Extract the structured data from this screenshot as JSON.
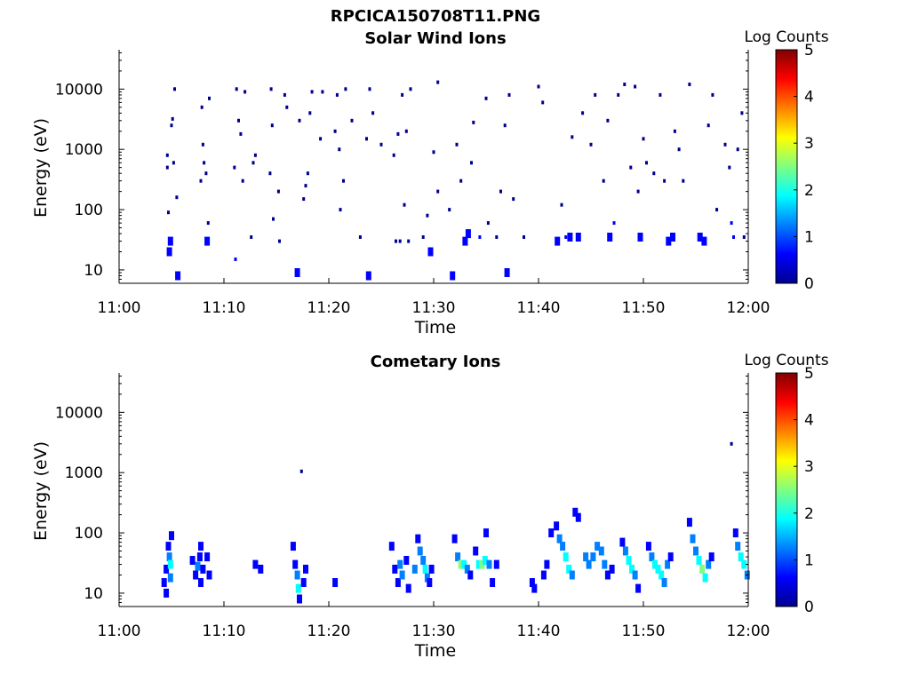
{
  "figure": {
    "title": "RPCICA150708T11.PNG"
  },
  "colors": {
    "colormap": [
      "#00008f",
      "#0000ff",
      "#0080ff",
      "#00ffff",
      "#80ff80",
      "#ffff00",
      "#ff8000",
      "#ff0000",
      "#800000"
    ]
  },
  "chart_data": [
    {
      "type": "heatmap",
      "title": "Solar Wind Ions",
      "xlabel": "Time",
      "ylabel": "Energy (eV)",
      "colorbar_label": "Log Counts",
      "y_scale": "log",
      "x_range": [
        "11:00",
        "12:00"
      ],
      "y_range": [
        6,
        45000
      ],
      "x_ticks": [
        "11:00",
        "11:10",
        "11:20",
        "11:30",
        "11:40",
        "11:50",
        "12:00"
      ],
      "y_ticks": [
        "10",
        "100",
        "1000",
        "10000"
      ],
      "colorbar_range": [
        0,
        5
      ],
      "colorbar_ticks": [
        "0",
        "1",
        "2",
        "3",
        "4",
        "5"
      ],
      "points": [
        [
          4.6,
          800,
          0.2
        ],
        [
          4.6,
          500,
          0.2
        ],
        [
          4.7,
          90,
          0.3
        ],
        [
          4.8,
          20,
          0.5
        ],
        [
          4.9,
          30,
          0.5
        ],
        [
          5.0,
          2500,
          0.2
        ],
        [
          5.1,
          3200,
          0.2
        ],
        [
          5.2,
          600,
          0.2
        ],
        [
          5.3,
          10000,
          0.2
        ],
        [
          5.5,
          160,
          0.2
        ],
        [
          5.6,
          8,
          0.6
        ],
        [
          7.8,
          300,
          0.2
        ],
        [
          7.9,
          5000,
          0.2
        ],
        [
          8.0,
          1200,
          0.2
        ],
        [
          8.1,
          600,
          0.2
        ],
        [
          8.3,
          400,
          0.2
        ],
        [
          8.4,
          30,
          0.5
        ],
        [
          8.5,
          60,
          0.2
        ],
        [
          8.6,
          7000,
          0.2
        ],
        [
          11.0,
          500,
          0.2
        ],
        [
          11.2,
          10000,
          0.2
        ],
        [
          11.4,
          3000,
          0.2
        ],
        [
          11.6,
          1800,
          0.2
        ],
        [
          11.8,
          300,
          0.2
        ],
        [
          12.0,
          9000,
          0.2
        ],
        [
          11.1,
          15,
          0.4
        ],
        [
          12.6,
          35,
          0.3
        ],
        [
          12.8,
          600,
          0.2
        ],
        [
          13.0,
          800,
          0.2
        ],
        [
          14.4,
          400,
          0.2
        ],
        [
          14.5,
          10000,
          0.2
        ],
        [
          14.6,
          2500,
          0.2
        ],
        [
          14.7,
          70,
          0.2
        ],
        [
          15.2,
          200,
          0.2
        ],
        [
          15.3,
          30,
          0.3
        ],
        [
          15.8,
          8000,
          0.2
        ],
        [
          16.0,
          5000,
          0.2
        ],
        [
          17.0,
          9,
          0.6
        ],
        [
          17.2,
          3000,
          0.2
        ],
        [
          17.6,
          150,
          0.2
        ],
        [
          17.8,
          250,
          0.2
        ],
        [
          18.0,
          400,
          0.2
        ],
        [
          18.2,
          4000,
          0.2
        ],
        [
          18.4,
          9000,
          0.2
        ],
        [
          19.2,
          1500,
          0.2
        ],
        [
          19.4,
          9000,
          0.2
        ],
        [
          20.6,
          2000,
          0.2
        ],
        [
          20.8,
          8000,
          0.2
        ],
        [
          21.0,
          1000,
          0.2
        ],
        [
          21.1,
          100,
          0.3
        ],
        [
          21.4,
          300,
          0.2
        ],
        [
          21.6,
          10000,
          0.2
        ],
        [
          22.2,
          3000,
          0.2
        ],
        [
          23.0,
          35,
          0.3
        ],
        [
          23.6,
          1500,
          0.2
        ],
        [
          23.8,
          8,
          0.6
        ],
        [
          23.9,
          10000,
          0.2
        ],
        [
          24.2,
          4000,
          0.2
        ],
        [
          25.0,
          1200,
          0.2
        ],
        [
          26.2,
          800,
          0.2
        ],
        [
          26.6,
          1800,
          0.2
        ],
        [
          27.0,
          8000,
          0.2
        ],
        [
          27.4,
          2000,
          0.2
        ],
        [
          26.4,
          30,
          0.3
        ],
        [
          26.8,
          30,
          0.3
        ],
        [
          27.2,
          120,
          0.2
        ],
        [
          27.6,
          30,
          0.3
        ],
        [
          27.8,
          10000,
          0.2
        ],
        [
          29.0,
          35,
          0.3
        ],
        [
          29.4,
          80,
          0.3
        ],
        [
          29.7,
          20,
          0.5
        ],
        [
          30.0,
          900,
          0.2
        ],
        [
          30.4,
          13000,
          0.2
        ],
        [
          30.4,
          200,
          0.2
        ],
        [
          31.5,
          100,
          0.3
        ],
        [
          31.8,
          8,
          0.5
        ],
        [
          32.2,
          1200,
          0.2
        ],
        [
          32.6,
          300,
          0.2
        ],
        [
          33.0,
          30,
          0.5
        ],
        [
          33.3,
          40,
          0.5
        ],
        [
          33.6,
          600,
          0.2
        ],
        [
          33.8,
          2800,
          0.2
        ],
        [
          34.4,
          35,
          0.4
        ],
        [
          35.0,
          7000,
          0.2
        ],
        [
          35.2,
          60,
          0.3
        ],
        [
          36.0,
          35,
          0.3
        ],
        [
          36.4,
          200,
          0.2
        ],
        [
          36.8,
          2500,
          0.2
        ],
        [
          37.0,
          9,
          0.6
        ],
        [
          37.2,
          8000,
          0.2
        ],
        [
          37.6,
          150,
          0.2
        ],
        [
          38.6,
          35,
          0.3
        ],
        [
          40.0,
          11000,
          0.2
        ],
        [
          40.4,
          6000,
          0.2
        ],
        [
          41.8,
          30,
          0.5
        ],
        [
          42.2,
          120,
          0.3
        ],
        [
          42.6,
          35,
          0.4
        ],
        [
          43.0,
          35,
          0.5
        ],
        [
          43.2,
          1600,
          0.2
        ],
        [
          43.8,
          35,
          0.5
        ],
        [
          44.2,
          4000,
          0.2
        ],
        [
          45.0,
          1200,
          0.2
        ],
        [
          45.4,
          8000,
          0.2
        ],
        [
          46.2,
          300,
          0.2
        ],
        [
          46.6,
          3000,
          0.2
        ],
        [
          46.8,
          35,
          0.5
        ],
        [
          47.2,
          60,
          0.4
        ],
        [
          47.6,
          8000,
          0.2
        ],
        [
          48.2,
          12000,
          0.2
        ],
        [
          48.8,
          500,
          0.2
        ],
        [
          49.2,
          11000,
          0.2
        ],
        [
          49.5,
          200,
          0.2
        ],
        [
          49.7,
          35,
          0.5
        ],
        [
          50.0,
          1500,
          0.2
        ],
        [
          50.3,
          600,
          0.2
        ],
        [
          51.0,
          400,
          0.2
        ],
        [
          51.6,
          8000,
          0.2
        ],
        [
          52.0,
          300,
          0.2
        ],
        [
          52.4,
          30,
          0.5
        ],
        [
          52.8,
          35,
          0.5
        ],
        [
          53.0,
          2000,
          0.2
        ],
        [
          53.4,
          1000,
          0.2
        ],
        [
          53.8,
          300,
          0.2
        ],
        [
          54.4,
          12000,
          0.2
        ],
        [
          55.4,
          35,
          0.5
        ],
        [
          55.8,
          30,
          0.5
        ],
        [
          56.2,
          2500,
          0.2
        ],
        [
          56.6,
          8000,
          0.2
        ],
        [
          57.0,
          100,
          0.3
        ],
        [
          57.8,
          1200,
          0.2
        ],
        [
          58.2,
          500,
          0.2
        ],
        [
          58.4,
          60,
          0.4
        ],
        [
          58.6,
          35,
          0.4
        ],
        [
          59.0,
          1000,
          0.2
        ],
        [
          59.4,
          4000,
          0.2
        ],
        [
          59.6,
          35,
          0.3
        ]
      ]
    },
    {
      "type": "heatmap",
      "title": "Cometary Ions",
      "xlabel": "Time",
      "ylabel": "Energy (eV)",
      "colorbar_label": "Log Counts",
      "y_scale": "log",
      "x_range": [
        "11:00",
        "12:00"
      ],
      "y_range": [
        6,
        45000
      ],
      "x_ticks": [
        "11:00",
        "11:10",
        "11:20",
        "11:30",
        "11:40",
        "11:50",
        "12:00"
      ],
      "y_ticks": [
        "10",
        "100",
        "1000",
        "10000"
      ],
      "colorbar_range": [
        0,
        5
      ],
      "colorbar_ticks": [
        "0",
        "1",
        "2",
        "3",
        "4",
        "5"
      ],
      "points": [
        [
          4.3,
          15,
          0.5
        ],
        [
          4.5,
          10,
          0.6
        ],
        [
          4.5,
          25,
          0.8
        ],
        [
          4.7,
          60,
          0.8
        ],
        [
          4.8,
          40,
          1.2
        ],
        [
          4.9,
          30,
          2.0
        ],
        [
          4.9,
          18,
          1.5
        ],
        [
          5.0,
          90,
          0.6
        ],
        [
          7.0,
          35,
          0.5
        ],
        [
          7.3,
          20,
          0.8
        ],
        [
          7.5,
          28,
          1.0
        ],
        [
          7.7,
          40,
          0.9
        ],
        [
          7.8,
          60,
          0.6
        ],
        [
          7.8,
          15,
          0.8
        ],
        [
          8.0,
          25,
          0.7
        ],
        [
          8.4,
          40,
          0.6
        ],
        [
          8.6,
          20,
          0.6
        ],
        [
          13.0,
          30,
          0.5
        ],
        [
          13.5,
          25,
          0.6
        ],
        [
          16.6,
          60,
          0.5
        ],
        [
          16.8,
          30,
          0.8
        ],
        [
          17.0,
          20,
          1.0
        ],
        [
          17.1,
          12,
          1.8
        ],
        [
          17.2,
          8,
          0.6
        ],
        [
          17.4,
          1050,
          0.3
        ],
        [
          17.6,
          15,
          0.7
        ],
        [
          17.8,
          25,
          0.6
        ],
        [
          20.6,
          15,
          0.6
        ],
        [
          26.0,
          60,
          0.5
        ],
        [
          26.3,
          25,
          0.8
        ],
        [
          26.6,
          15,
          0.8
        ],
        [
          26.8,
          30,
          1.0
        ],
        [
          27.0,
          20,
          1.2
        ],
        [
          27.4,
          35,
          0.8
        ],
        [
          27.6,
          12,
          0.6
        ],
        [
          28.2,
          25,
          1.0
        ],
        [
          28.5,
          80,
          0.8
        ],
        [
          28.7,
          50,
          1.0
        ],
        [
          29.0,
          35,
          1.4
        ],
        [
          29.2,
          25,
          1.6
        ],
        [
          29.4,
          18,
          1.2
        ],
        [
          29.6,
          15,
          0.8
        ],
        [
          29.8,
          25,
          0.6
        ],
        [
          32.0,
          80,
          0.6
        ],
        [
          32.3,
          40,
          1.2
        ],
        [
          32.6,
          30,
          2.2
        ],
        [
          32.9,
          30,
          2.0
        ],
        [
          33.2,
          25,
          1.0
        ],
        [
          33.5,
          20,
          0.8
        ],
        [
          34.0,
          50,
          0.7
        ],
        [
          34.3,
          30,
          1.8
        ],
        [
          34.6,
          30,
          2.2
        ],
        [
          34.9,
          35,
          2.0
        ],
        [
          35.0,
          100,
          0.5
        ],
        [
          35.3,
          30,
          1.0
        ],
        [
          35.6,
          15,
          0.6
        ],
        [
          36.0,
          30,
          0.6
        ],
        [
          39.4,
          15,
          0.6
        ],
        [
          39.6,
          12,
          0.7
        ],
        [
          40.5,
          20,
          0.6
        ],
        [
          40.8,
          30,
          0.6
        ],
        [
          41.2,
          100,
          0.8
        ],
        [
          41.7,
          130,
          0.8
        ],
        [
          42.0,
          80,
          1.0
        ],
        [
          42.3,
          60,
          1.4
        ],
        [
          42.6,
          40,
          1.8
        ],
        [
          42.9,
          25,
          1.6
        ],
        [
          43.2,
          20,
          1.2
        ],
        [
          43.5,
          220,
          0.7
        ],
        [
          43.8,
          180,
          0.7
        ],
        [
          44.5,
          40,
          1.0
        ],
        [
          44.8,
          30,
          1.4
        ],
        [
          45.2,
          40,
          1.0
        ],
        [
          45.6,
          60,
          1.2
        ],
        [
          46.0,
          50,
          1.0
        ],
        [
          46.3,
          30,
          1.2
        ],
        [
          46.6,
          20,
          0.8
        ],
        [
          47.0,
          25,
          0.9
        ],
        [
          48.0,
          70,
          0.8
        ],
        [
          48.3,
          50,
          1.2
        ],
        [
          48.6,
          35,
          2.0
        ],
        [
          48.9,
          25,
          1.8
        ],
        [
          49.2,
          20,
          1.2
        ],
        [
          49.5,
          12,
          0.8
        ],
        [
          50.5,
          60,
          0.7
        ],
        [
          50.8,
          40,
          1.2
        ],
        [
          51.1,
          30,
          2.0
        ],
        [
          51.4,
          25,
          1.8
        ],
        [
          51.7,
          20,
          1.6
        ],
        [
          52.0,
          15,
          1.2
        ],
        [
          52.3,
          30,
          1.0
        ],
        [
          52.6,
          40,
          0.8
        ],
        [
          54.4,
          150,
          0.6
        ],
        [
          54.7,
          80,
          1.0
        ],
        [
          55.0,
          50,
          1.4
        ],
        [
          55.3,
          35,
          2.0
        ],
        [
          55.6,
          25,
          2.2
        ],
        [
          55.9,
          18,
          1.6
        ],
        [
          56.2,
          30,
          1.0
        ],
        [
          56.5,
          40,
          0.8
        ],
        [
          58.4,
          3000,
          0.3
        ],
        [
          58.8,
          100,
          0.6
        ],
        [
          59.0,
          60,
          1.0
        ],
        [
          59.3,
          40,
          1.6
        ],
        [
          59.6,
          30,
          2.0
        ],
        [
          59.9,
          20,
          1.2
        ]
      ]
    }
  ]
}
